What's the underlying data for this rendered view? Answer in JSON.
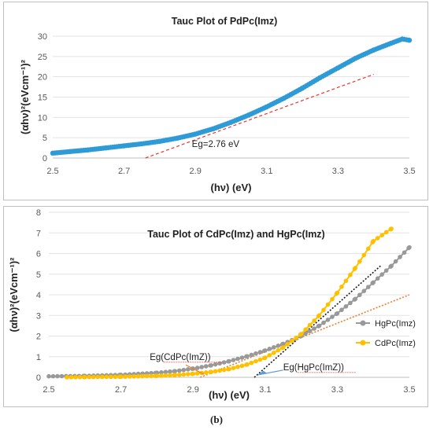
{
  "caption": "(b)",
  "chart_data": [
    {
      "type": "scatter",
      "title": "Tauc Plot of PdPc(Imz)",
      "xlabel": "(hν) (eV)",
      "ylabel": "(αhν)²(eVcm⁻¹)²",
      "xlim": [
        2.5,
        3.5
      ],
      "ylim": [
        0,
        30
      ],
      "xticks": [
        "2.5",
        "2.7",
        "2.9",
        "3.1",
        "3.3",
        "3.5"
      ],
      "yticks": [
        "0",
        "5",
        "10",
        "15",
        "20",
        "25",
        "30"
      ],
      "grid": "horizontal",
      "colors": {
        "series": "#2e9bd6",
        "fit": "#e8362c"
      },
      "series": [
        {
          "x": [
            2.5,
            2.55,
            2.6,
            2.65,
            2.7,
            2.75,
            2.8,
            2.85,
            2.9,
            2.95,
            3.0,
            3.05,
            3.1,
            3.15,
            3.2,
            3.25,
            3.3,
            3.35,
            3.4,
            3.45,
            3.48,
            3.5
          ],
          "y": [
            1.2,
            1.6,
            2.0,
            2.5,
            3.0,
            3.5,
            4.1,
            4.9,
            5.9,
            7.2,
            8.8,
            10.6,
            12.6,
            14.8,
            17.2,
            19.8,
            22.2,
            24.6,
            26.6,
            28.3,
            29.3,
            29.0
          ]
        }
      ],
      "fit_line": {
        "x": [
          2.76,
          3.4
        ],
        "y": [
          0,
          20.6
        ]
      },
      "annotations": [
        {
          "text": "Eg=2.76 eV",
          "x": 2.89,
          "y": 3.5
        }
      ]
    },
    {
      "type": "line",
      "title": "Tauc Plot of CdPc(Imz) and HgPc(Imz)",
      "xlabel": "(hν) (eV)",
      "ylabel": "(αhν)²(eVcm⁻¹)²",
      "xlim": [
        2.5,
        3.5
      ],
      "ylim": [
        0,
        8
      ],
      "xticks": [
        "2.5",
        "2.7",
        "2.9",
        "3.1",
        "3.3",
        "3.5"
      ],
      "yticks": [
        "0",
        "1",
        "2",
        "3",
        "4",
        "5",
        "6",
        "7",
        "8"
      ],
      "grid": "horizontal",
      "legend": "right",
      "series": [
        {
          "name": "HgPc(Imz)",
          "color": "#999999",
          "x": [
            2.5,
            2.6,
            2.7,
            2.8,
            2.85,
            2.9,
            2.95,
            3.0,
            3.05,
            3.1,
            3.15,
            3.2,
            3.25,
            3.3,
            3.35,
            3.4,
            3.45,
            3.5
          ],
          "y": [
            0.05,
            0.07,
            0.12,
            0.22,
            0.3,
            0.42,
            0.58,
            0.78,
            1.02,
            1.3,
            1.62,
            2.0,
            2.5,
            3.1,
            3.8,
            4.6,
            5.4,
            6.3
          ]
        },
        {
          "name": "CdPc(Imz)",
          "color": "#ffc000",
          "x": [
            2.55,
            2.6,
            2.7,
            2.8,
            2.85,
            2.9,
            2.95,
            3.0,
            3.05,
            3.1,
            3.15,
            3.2,
            3.25,
            3.3,
            3.35,
            3.4,
            3.45
          ],
          "y": [
            0.0,
            0.01,
            0.03,
            0.07,
            0.11,
            0.17,
            0.26,
            0.4,
            0.62,
            0.95,
            1.45,
            2.1,
            3.0,
            4.1,
            5.3,
            6.6,
            7.2
          ]
        }
      ],
      "fit_lines": [
        {
          "color": "#ed7d31",
          "x": [
            2.92,
            3.5
          ],
          "y": [
            0,
            4.0
          ]
        },
        {
          "color": "#1a1a1a",
          "x": [
            3.07,
            3.42
          ],
          "y": [
            0,
            5.4
          ]
        }
      ],
      "annotations": [
        {
          "text": "Eg(CdPc(ImZ))",
          "x": 2.78,
          "y": 1.0
        },
        {
          "text": "Eg(HgPc(ImZ))",
          "x": 3.15,
          "y": 0.5
        }
      ]
    }
  ]
}
